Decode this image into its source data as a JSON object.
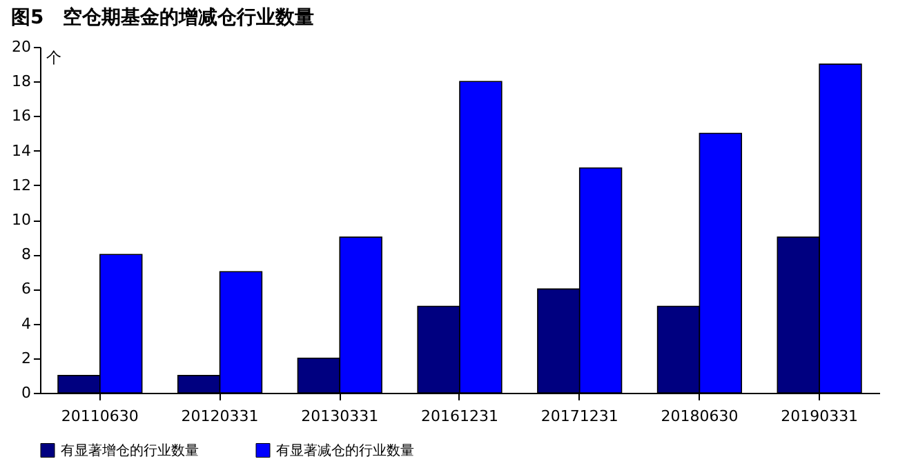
{
  "chart_data": {
    "type": "bar",
    "title": "图5　空仓期基金的增减仓行业数量",
    "ylabel": "个",
    "categories": [
      "20110630",
      "20120331",
      "20130331",
      "20161231",
      "20171231",
      "20180630",
      "20190331"
    ],
    "series": [
      {
        "name": "有显著增仓的行业数量",
        "color": "#000080",
        "values": [
          1,
          1,
          2,
          5,
          6,
          5,
          9
        ]
      },
      {
        "name": "有显著减仓的行业数量",
        "color": "#0000ff",
        "values": [
          8,
          7,
          9,
          18,
          13,
          15,
          19
        ]
      }
    ],
    "ylim": [
      0,
      20
    ],
    "yticks": [
      0,
      2,
      4,
      6,
      8,
      10,
      12,
      14,
      16,
      18,
      20
    ],
    "grid": false,
    "legend": "bottom"
  }
}
